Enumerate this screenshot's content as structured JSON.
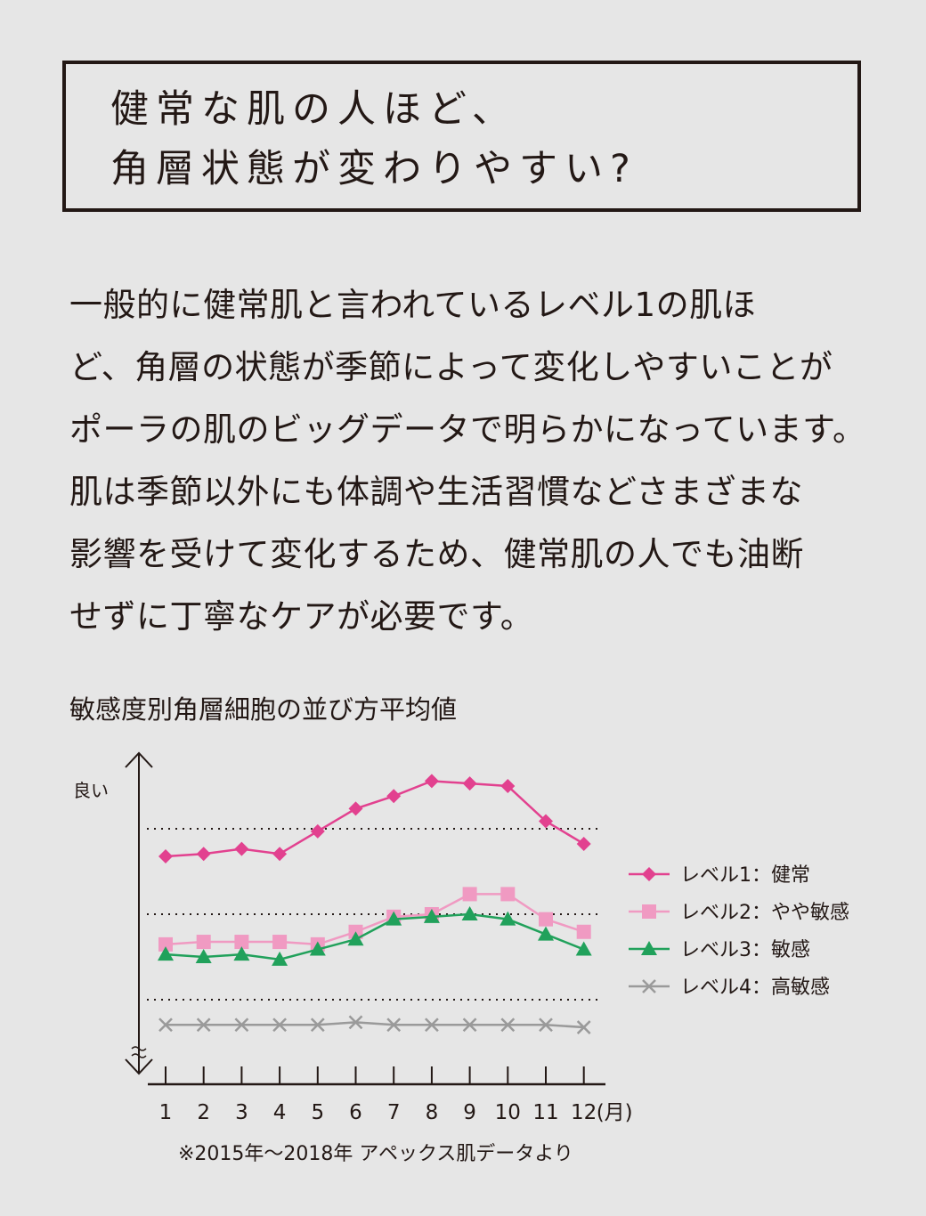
{
  "heading": {
    "line1": "健常な肌の人ほど、",
    "line2": "角層状態が変わりやすい?"
  },
  "body": {
    "lines": [
      "一般的に健常肌と言われているレベル1の肌ほ",
      "ど、角層の状態が季節によって変化しやすいことが",
      "ポーラの肌のビッグデータで明らかになっています。",
      "肌は季節以外にも体調や生活習慣などさまざまな",
      "影響を受けて変化するため、健常肌の人でも油断",
      "せずに丁寧なケアが必要です。"
    ]
  },
  "chart_data": {
    "type": "line",
    "title": "敏感度別角層細胞の並び方平均値",
    "ylabel": "良い",
    "x": [
      "1",
      "2",
      "3",
      "4",
      "5",
      "6",
      "7",
      "8",
      "9",
      "10",
      "11",
      "12"
    ],
    "x_unit": "(月)",
    "ylim": [
      0,
      100
    ],
    "series": [
      {
        "name": "レベル1：健常",
        "marker": "diamond",
        "color": "#e2418f",
        "values": [
          61,
          62,
          64,
          62,
          71,
          80,
          85,
          91,
          90,
          89,
          75,
          66
        ]
      },
      {
        "name": "レベル2：やや敏感",
        "marker": "square",
        "color": "#f09ac2",
        "values": [
          26,
          27,
          27,
          27,
          26,
          31,
          37,
          38,
          46,
          46,
          36,
          31
        ]
      },
      {
        "name": "レベル3：敏感",
        "marker": "triangle",
        "color": "#21a15b",
        "values": [
          22,
          21,
          22,
          20,
          24,
          28,
          36,
          37,
          38,
          36,
          30,
          24
        ]
      },
      {
        "name": "レベル4：高敏感",
        "marker": "cross",
        "color": "#9a9a9a",
        "values": [
          -6,
          -6,
          -6,
          -6,
          -6,
          -5,
          -6,
          -6,
          -6,
          -6,
          -6,
          -7
        ]
      }
    ],
    "legend": "right",
    "grid": "dotted",
    "gridlines": [
      72,
      38,
      4
    ]
  },
  "footnote": "※2015年〜2018年 アペックス肌データより"
}
